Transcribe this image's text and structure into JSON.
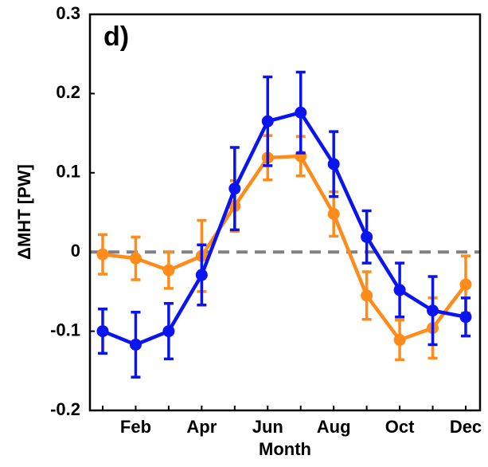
{
  "chart_data": {
    "type": "line",
    "annotation": "d)",
    "ylabel": "ΔMHT [PW]",
    "xlabel": "Month",
    "categories": [
      null,
      "Feb",
      null,
      "Apr",
      null,
      "Jun",
      null,
      "Aug",
      null,
      "Oct",
      null,
      "Dec"
    ],
    "ylim": [
      -0.2,
      0.3
    ],
    "yticks": [
      -0.2,
      -0.1,
      0,
      0.1,
      0.2,
      0.3
    ],
    "reference_line": 0,
    "series": [
      {
        "color": "#ff8c1a",
        "values": [
          -0.003,
          -0.008,
          -0.023,
          -0.005,
          0.058,
          0.119,
          0.121,
          0.048,
          -0.055,
          -0.111,
          -0.096,
          -0.041
        ],
        "errors": [
          0.025,
          0.027,
          0.023,
          0.045,
          0.032,
          0.028,
          0.025,
          0.028,
          0.03,
          0.025,
          0.038,
          0.036
        ]
      },
      {
        "color": "#0a14f0",
        "values": [
          -0.1,
          -0.117,
          -0.1,
          -0.029,
          0.08,
          0.165,
          0.176,
          0.111,
          0.019,
          -0.048,
          -0.074,
          -0.082
        ],
        "errors": [
          0.028,
          0.041,
          0.035,
          0.038,
          0.052,
          0.056,
          0.051,
          0.041,
          0.033,
          0.034,
          0.043,
          0.024
        ]
      }
    ]
  }
}
